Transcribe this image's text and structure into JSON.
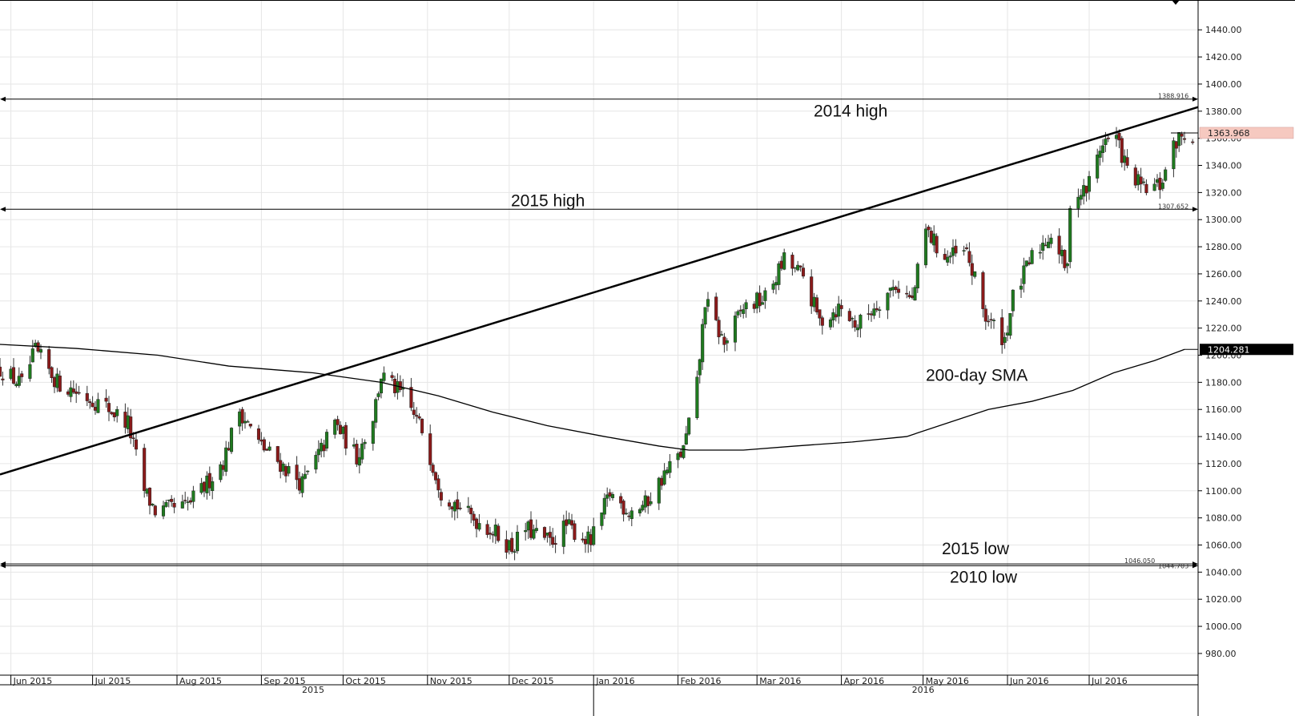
{
  "chart_data": {
    "type": "candlestick",
    "title": "",
    "xlabel": "",
    "ylabel": "",
    "ylim": [
      964,
      1462
    ],
    "y_ticks": [
      980,
      1000,
      1020,
      1040,
      1060,
      1080,
      1100,
      1120,
      1140,
      1160,
      1180,
      1200,
      1220,
      1240,
      1260,
      1280,
      1300,
      1320,
      1340,
      1360,
      1380,
      1400,
      1420,
      1440
    ],
    "y_tick_labels": [
      "980.00",
      "1000.00",
      "1020.00",
      "1040.00",
      "1060.00",
      "1080.00",
      "1100.00",
      "1120.00",
      "1140.00",
      "1160.00",
      "1180.00",
      "1200.00",
      "1220.00",
      "1240.00",
      "1260.00",
      "1280.00",
      "1300.00",
      "1320.00",
      "1340.00",
      "1360.00",
      "1380.00",
      "1400.00",
      "1420.00",
      "1440.00"
    ],
    "x_start": "2015-05-28",
    "x_end": "2016-08-10",
    "months": [
      {
        "label": "Jun 2015",
        "date": "2015-06-01"
      },
      {
        "label": "Jul 2015",
        "date": "2015-07-01"
      },
      {
        "label": "Aug 2015",
        "date": "2015-08-01"
      },
      {
        "label": "Sep 2015",
        "date": "2015-09-01"
      },
      {
        "label": "Oct 2015",
        "date": "2015-10-01"
      },
      {
        "label": "Nov 2015",
        "date": "2015-11-01"
      },
      {
        "label": "Dec 2015",
        "date": "2015-12-01"
      },
      {
        "label": "Jan 2016",
        "date": "2016-01-01"
      },
      {
        "label": "Feb 2016",
        "date": "2016-02-01"
      },
      {
        "label": "Mar 2016",
        "date": "2016-03-01"
      },
      {
        "label": "Apr 2016",
        "date": "2016-04-01"
      },
      {
        "label": "May 2016",
        "date": "2016-05-01"
      },
      {
        "label": "Jun 2016",
        "date": "2016-06-01"
      },
      {
        "label": "Jul 2016",
        "date": "2016-07-01"
      }
    ],
    "years": [
      {
        "label": "2015",
        "date": "2015-09-20"
      },
      {
        "label": "2016",
        "date": "2016-05-01"
      }
    ],
    "year_divider_date": "2016-01-01",
    "colors": {
      "up": "#1f7a1f",
      "down": "#8b1a1a",
      "wick": "#333333",
      "line": "#000000",
      "grid": "#e6e6e6"
    },
    "price_path": [
      [
        "2015-05-28",
        1190
      ],
      [
        "2015-06-05",
        1178
      ],
      [
        "2015-06-10",
        1203
      ],
      [
        "2015-06-18",
        1180
      ],
      [
        "2015-06-26",
        1172
      ],
      [
        "2015-07-06",
        1162
      ],
      [
        "2015-07-14",
        1150
      ],
      [
        "2015-07-20",
        1100
      ],
      [
        "2015-07-24",
        1085
      ],
      [
        "2015-08-04",
        1088
      ],
      [
        "2015-08-10",
        1100
      ],
      [
        "2015-08-18",
        1122
      ],
      [
        "2015-08-24",
        1160
      ],
      [
        "2015-08-31",
        1135
      ],
      [
        "2015-09-08",
        1120
      ],
      [
        "2015-09-16",
        1105
      ],
      [
        "2015-09-23",
        1130
      ],
      [
        "2015-09-28",
        1150
      ],
      [
        "2015-10-06",
        1125
      ],
      [
        "2015-10-12",
        1155
      ],
      [
        "2015-10-15",
        1185
      ],
      [
        "2015-10-23",
        1170
      ],
      [
        "2015-10-30",
        1145
      ],
      [
        "2015-11-06",
        1100
      ],
      [
        "2015-11-16",
        1082
      ],
      [
        "2015-11-24",
        1072
      ],
      [
        "2015-12-02",
        1058
      ],
      [
        "2015-12-07",
        1072
      ],
      [
        "2015-12-16",
        1062
      ],
      [
        "2015-12-22",
        1074
      ],
      [
        "2015-12-31",
        1062
      ],
      [
        "2016-01-07",
        1098
      ],
      [
        "2016-01-14",
        1085
      ],
      [
        "2016-01-20",
        1090
      ],
      [
        "2016-01-27",
        1112
      ],
      [
        "2016-02-03",
        1130
      ],
      [
        "2016-02-08",
        1178
      ],
      [
        "2016-02-11",
        1240
      ],
      [
        "2016-02-18",
        1208
      ],
      [
        "2016-02-25",
        1235
      ],
      [
        "2016-03-04",
        1242
      ],
      [
        "2016-03-11",
        1270
      ],
      [
        "2016-03-18",
        1258
      ],
      [
        "2016-03-24",
        1225
      ],
      [
        "2016-03-31",
        1235
      ],
      [
        "2016-04-07",
        1222
      ],
      [
        "2016-04-14",
        1238
      ],
      [
        "2016-04-21",
        1252
      ],
      [
        "2016-04-27",
        1240
      ],
      [
        "2016-05-02",
        1292
      ],
      [
        "2016-05-09",
        1272
      ],
      [
        "2016-05-17",
        1275
      ],
      [
        "2016-05-24",
        1228
      ],
      [
        "2016-05-31",
        1212
      ],
      [
        "2016-06-03",
        1242
      ],
      [
        "2016-06-10",
        1272
      ],
      [
        "2016-06-17",
        1290
      ],
      [
        "2016-06-23",
        1262
      ],
      [
        "2016-06-24",
        1315
      ],
      [
        "2016-06-30",
        1322
      ],
      [
        "2016-07-06",
        1358
      ],
      [
        "2016-07-11",
        1360
      ],
      [
        "2016-07-15",
        1336
      ],
      [
        "2016-07-21",
        1322
      ],
      [
        "2016-07-27",
        1325
      ],
      [
        "2016-08-02",
        1358
      ],
      [
        "2016-08-05",
        1363
      ]
    ],
    "sma200": [
      [
        "2015-05-28",
        1208
      ],
      [
        "2015-06-25",
        1205
      ],
      [
        "2015-07-25",
        1200
      ],
      [
        "2015-08-20",
        1192
      ],
      [
        "2015-09-20",
        1187
      ],
      [
        "2015-10-15",
        1180
      ],
      [
        "2015-11-05",
        1170
      ],
      [
        "2015-11-25",
        1158
      ],
      [
        "2015-12-15",
        1148
      ],
      [
        "2016-01-05",
        1140
      ],
      [
        "2016-01-25",
        1133
      ],
      [
        "2016-02-05",
        1130
      ],
      [
        "2016-02-25",
        1130
      ],
      [
        "2016-03-15",
        1133
      ],
      [
        "2016-04-05",
        1136
      ],
      [
        "2016-04-25",
        1140
      ],
      [
        "2016-05-10",
        1150
      ],
      [
        "2016-05-25",
        1160
      ],
      [
        "2016-06-10",
        1166
      ],
      [
        "2016-06-25",
        1174
      ],
      [
        "2016-07-10",
        1187
      ],
      [
        "2016-07-25",
        1196
      ],
      [
        "2016-08-05",
        1204.281
      ]
    ],
    "trendline": [
      [
        "2015-05-28",
        1112
      ],
      [
        "2016-08-10",
        1383
      ]
    ],
    "levels": [
      {
        "name": "2014 high",
        "value": 1388.916,
        "label": "1388.916",
        "text": "2014 high"
      },
      {
        "name": "2015 high",
        "value": 1307.652,
        "label": "1307.652",
        "text": "2015 high"
      },
      {
        "name": "2015 low",
        "value": 1046.05,
        "label": "1046.050",
        "text": "2015 low"
      },
      {
        "name": "2010 low",
        "value": 1044.703,
        "label": "1044.703",
        "text": "2010 low"
      }
    ],
    "annotations": [
      {
        "text": "200-day SMA",
        "date": "2016-05-02",
        "value": 1181
      }
    ],
    "current_price": {
      "value": 1363.968,
      "label": "1363.968",
      "color": "#f6c9c0"
    },
    "sma_value": {
      "value": 1204.281,
      "label": "1204.281",
      "color": "#000000"
    }
  }
}
